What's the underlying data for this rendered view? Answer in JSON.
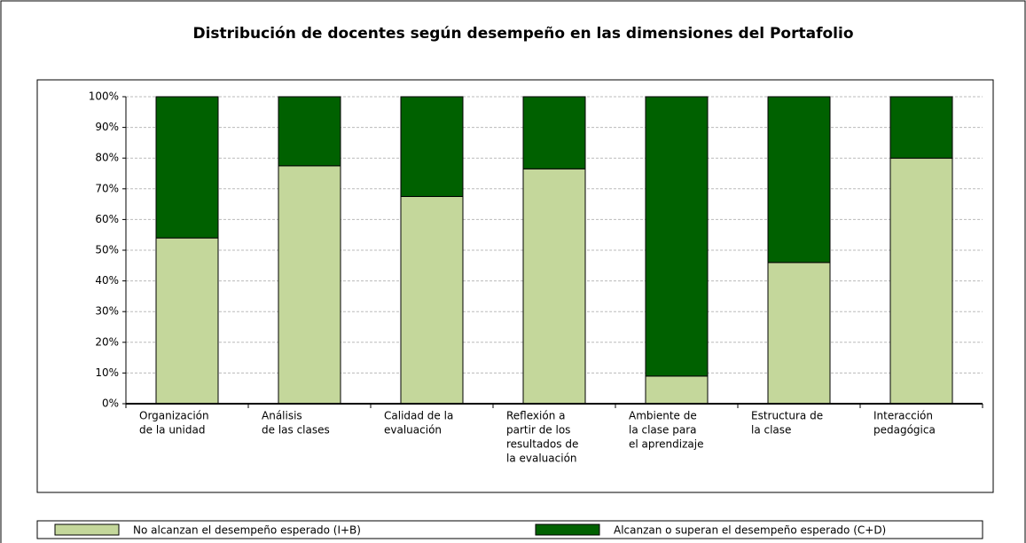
{
  "chart_data": {
    "type": "stacked_bar",
    "title": "Distribución de docentes según desempeño en las dimensiones del Portafolio",
    "categories": [
      [
        "Organización",
        "de la unidad"
      ],
      [
        "Análisis",
        "de las clases"
      ],
      [
        "Calidad de la",
        "evaluación"
      ],
      [
        "Reflexión a",
        "partir de los",
        "resultados de",
        "la evaluación"
      ],
      [
        "Ambiente de",
        "la clase para",
        "el aprendizaje"
      ],
      [
        "Estructura de",
        "la clase"
      ],
      [
        "Interacción",
        "pedagógica"
      ]
    ],
    "series": [
      {
        "name": "No alcanzan el desempeño esperado (I+B)",
        "color": "#c4d79b",
        "values": [
          54,
          77.5,
          67.5,
          76.5,
          9,
          46,
          80
        ]
      },
      {
        "name": "Alcanzan o superan el desempeño esperado (C+D)",
        "color": "#006100",
        "values": [
          46,
          22.5,
          32.5,
          23.5,
          91,
          54,
          20
        ]
      }
    ],
    "ylim": [
      0,
      100
    ],
    "yticks": [
      {
        "value": 0,
        "label": "0%"
      },
      {
        "value": 10,
        "label": "10%"
      },
      {
        "value": 20,
        "label": "20%"
      },
      {
        "value": 30,
        "label": "30%"
      },
      {
        "value": 40,
        "label": "40%"
      },
      {
        "value": 50,
        "label": "50%"
      },
      {
        "value": 60,
        "label": "60%"
      },
      {
        "value": 70,
        "label": "70%"
      },
      {
        "value": 80,
        "label": "80%"
      },
      {
        "value": 90,
        "label": "90%"
      },
      {
        "value": 100,
        "label": "100%"
      }
    ],
    "grid": true,
    "legend": "bottom"
  }
}
